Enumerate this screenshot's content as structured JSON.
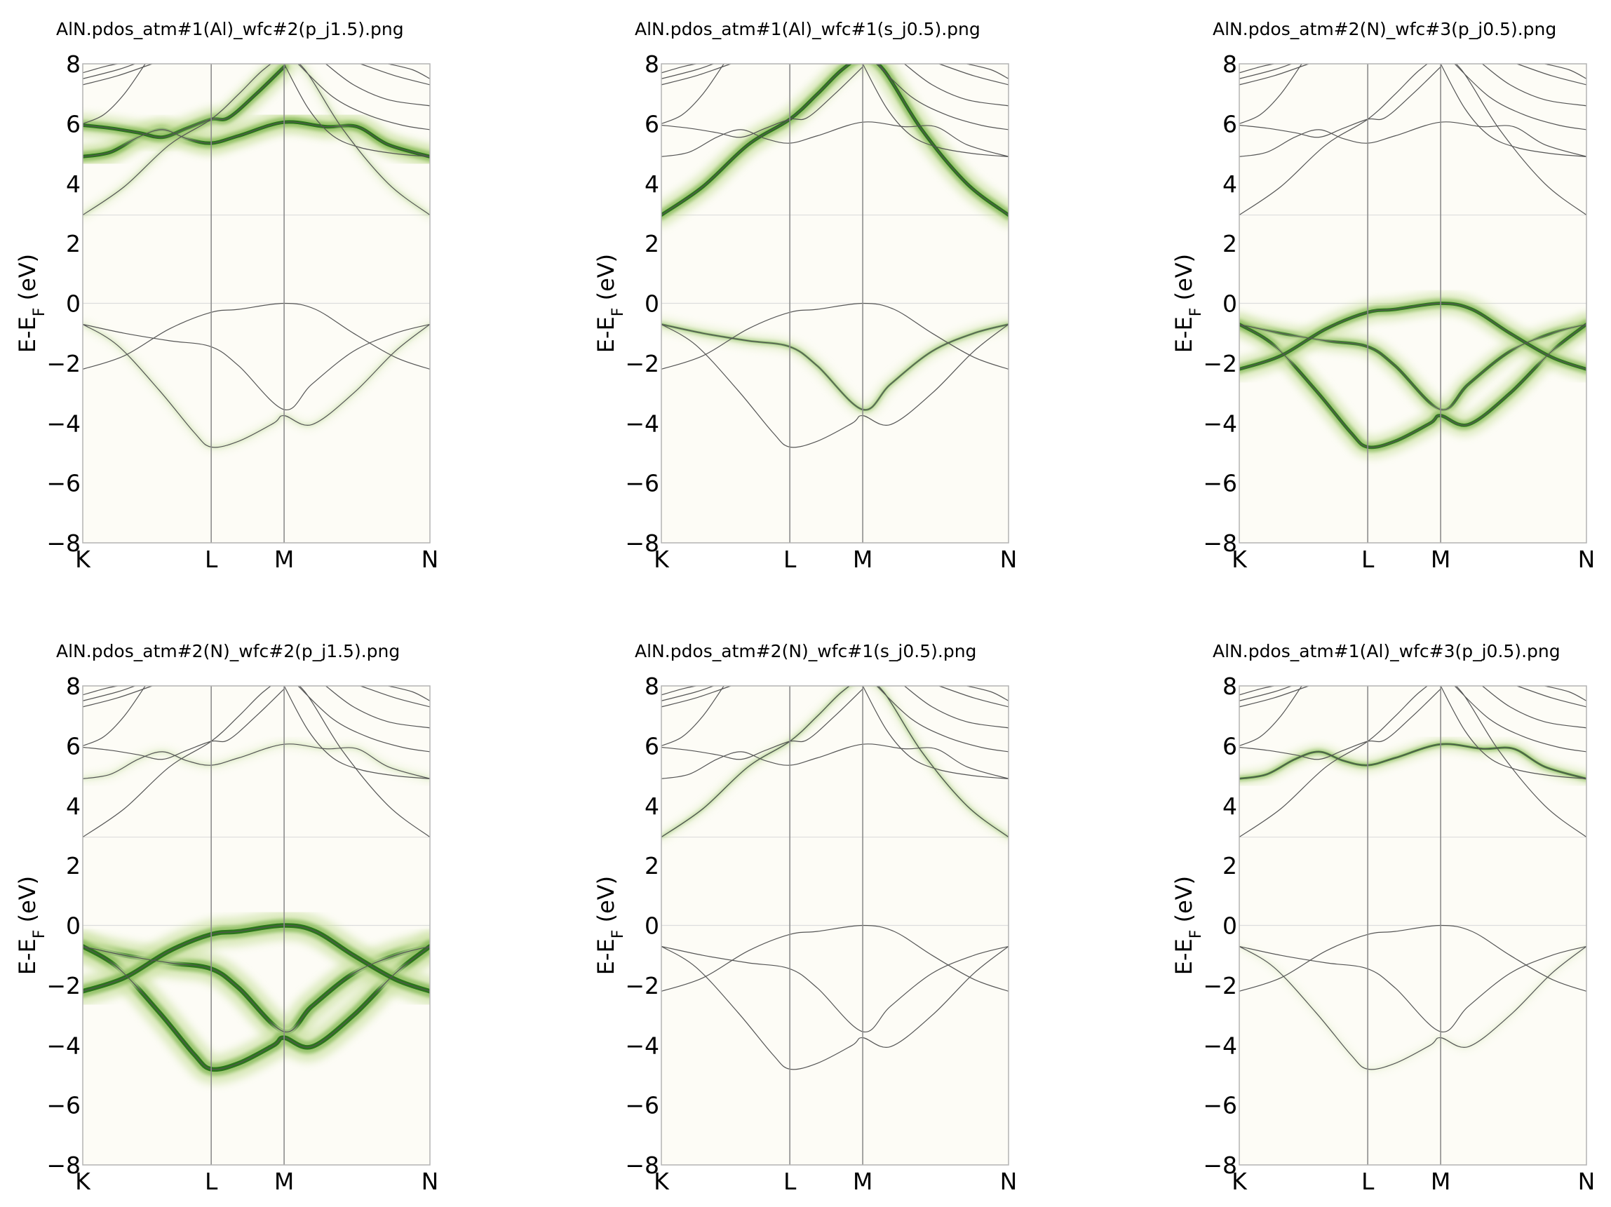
{
  "chart_data": [
    {
      "type": "line",
      "title": "AlN.pdos_atm#1(Al)_wfc#2(p_j1.5).png",
      "ylabel_main": "E-E",
      "ylabel_sub": "F",
      "ylabel_unit": " (eV)",
      "ylim": [
        -8,
        8
      ],
      "yticks": [
        "8",
        "6",
        "4",
        "2",
        "0",
        "−2",
        "−4",
        "−6",
        "−8"
      ],
      "kpoints": [
        "K",
        "L",
        "M",
        "N"
      ],
      "projection_on": [
        "b4:0.75",
        "b4:1.0",
        "b5:1.0",
        "b3:0.35",
        "b1:0.3"
      ],
      "projection_strength": "strong"
    },
    {
      "type": "line",
      "title": "AlN.pdos_atm#1(Al)_wfc#1(s_j0.5).png",
      "ylabel_main": "E-E",
      "ylabel_sub": "F",
      "ylabel_unit": " (eV)",
      "ylim": [
        -8,
        8
      ],
      "yticks": [
        "8",
        "6",
        "4",
        "2",
        "0",
        "−2",
        "−4",
        "−6",
        "−8"
      ],
      "kpoints": [
        "K",
        "L",
        "M",
        "N"
      ],
      "projection_on": [
        "b3:1.0",
        "b0:0.55"
      ],
      "projection_strength": "strong"
    },
    {
      "type": "line",
      "title": "AlN.pdos_atm#2(N)_wfc#3(p_j0.5).png",
      "ylabel_main": "E-E",
      "ylabel_sub": "F",
      "ylabel_unit": " (eV)",
      "ylim": [
        -8,
        8
      ],
      "yticks": [
        "8",
        "6",
        "4",
        "2",
        "0",
        "−2",
        "−4",
        "−6",
        "−8"
      ],
      "kpoints": [
        "K",
        "L",
        "M",
        "N"
      ],
      "projection_on": [
        "b0:0.85",
        "b1:0.95",
        "b2:0.95"
      ],
      "projection_strength": "strong"
    },
    {
      "type": "line",
      "title": "AlN.pdos_atm#2(N)_wfc#2(p_j1.5).png",
      "ylabel_main": "E-E",
      "ylabel_sub": "F",
      "ylabel_unit": " (eV)",
      "ylim": [
        -8,
        8
      ],
      "yticks": [
        "8",
        "6",
        "4",
        "2",
        "0",
        "−2",
        "−4",
        "−6",
        "−8"
      ],
      "kpoints": [
        "K",
        "L",
        "M",
        "N"
      ],
      "projection_on": [
        "b0:1.0",
        "b1:1.0",
        "b2:1.0",
        "b4:0.25"
      ],
      "projection_strength": "very-strong"
    },
    {
      "type": "line",
      "title": "AlN.pdos_atm#2(N)_wfc#1(s_j0.5).png",
      "ylabel_main": "E-E",
      "ylabel_sub": "F",
      "ylabel_unit": " (eV)",
      "ylim": [
        -8,
        8
      ],
      "yticks": [
        "8",
        "6",
        "4",
        "2",
        "0",
        "−2",
        "−4",
        "−6",
        "−8"
      ],
      "kpoints": [
        "K",
        "L",
        "M",
        "N"
      ],
      "projection_on": [
        "b3:0.6"
      ],
      "projection_strength": "weak"
    },
    {
      "type": "line",
      "title": "AlN.pdos_atm#1(Al)_wfc#3(p_j0.5).png",
      "ylabel_main": "E-E",
      "ylabel_sub": "F",
      "ylabel_unit": " (eV)",
      "ylim": [
        -8,
        8
      ],
      "yticks": [
        "8",
        "6",
        "4",
        "2",
        "0",
        "−2",
        "−4",
        "−6",
        "−8"
      ],
      "kpoints": [
        "K",
        "L",
        "M",
        "N"
      ],
      "projection_on": [
        "b4:0.8",
        "b1:0.25"
      ],
      "projection_strength": "medium"
    }
  ],
  "bands": {
    "b0": [
      [
        0,
        -0.7
      ],
      [
        0.12,
        -1.0
      ],
      [
        0.25,
        -1.25
      ],
      [
        0.37,
        -1.45
      ],
      [
        0.45,
        -2.1
      ],
      [
        0.58,
        -3.55
      ],
      [
        0.66,
        -2.7
      ],
      [
        0.78,
        -1.6
      ],
      [
        0.9,
        -1.0
      ],
      [
        1.0,
        -0.7
      ]
    ],
    "b1": [
      [
        0,
        -0.7
      ],
      [
        0.1,
        -1.4
      ],
      [
        0.22,
        -2.9
      ],
      [
        0.32,
        -4.3
      ],
      [
        0.37,
        -4.8
      ],
      [
        0.45,
        -4.6
      ],
      [
        0.55,
        -4.0
      ],
      [
        0.58,
        -3.75
      ],
      [
        0.66,
        -4.05
      ],
      [
        0.78,
        -3.0
      ],
      [
        0.9,
        -1.6
      ],
      [
        1.0,
        -0.7
      ]
    ],
    "b2": [
      [
        0,
        -2.2
      ],
      [
        0.12,
        -1.75
      ],
      [
        0.25,
        -0.85
      ],
      [
        0.37,
        -0.3
      ],
      [
        0.45,
        -0.2
      ],
      [
        0.58,
        0.0
      ],
      [
        0.67,
        -0.2
      ],
      [
        0.78,
        -1.0
      ],
      [
        0.9,
        -1.8
      ],
      [
        1.0,
        -2.2
      ]
    ],
    "b3": [
      [
        0,
        2.95
      ],
      [
        0.12,
        3.9
      ],
      [
        0.25,
        5.3
      ],
      [
        0.37,
        6.15
      ],
      [
        0.45,
        7.0
      ],
      [
        0.52,
        7.8
      ],
      [
        0.58,
        8.2
      ],
      [
        0.64,
        7.8
      ],
      [
        0.75,
        5.8
      ],
      [
        0.88,
        4.0
      ],
      [
        1.0,
        2.95
      ]
    ],
    "b4": [
      [
        0,
        4.9
      ],
      [
        0.08,
        5.05
      ],
      [
        0.16,
        5.55
      ],
      [
        0.23,
        5.8
      ],
      [
        0.3,
        5.5
      ],
      [
        0.37,
        5.35
      ],
      [
        0.45,
        5.6
      ],
      [
        0.58,
        6.05
      ],
      [
        0.7,
        5.9
      ],
      [
        0.79,
        5.9
      ],
      [
        0.88,
        5.3
      ],
      [
        1.0,
        4.9
      ]
    ],
    "b5": [
      [
        0,
        5.95
      ],
      [
        0.08,
        5.85
      ],
      [
        0.16,
        5.7
      ],
      [
        0.23,
        5.55
      ],
      [
        0.3,
        5.85
      ],
      [
        0.37,
        6.15
      ],
      [
        0.42,
        6.2
      ],
      [
        0.5,
        7.0
      ],
      [
        0.58,
        7.9
      ]
    ],
    "b6": [
      [
        0,
        7.3
      ],
      [
        0.1,
        7.6
      ],
      [
        0.2,
        8.0
      ]
    ],
    "b7": [
      [
        0,
        7.5
      ],
      [
        0.1,
        7.8
      ],
      [
        0.15,
        8.0
      ]
    ],
    "b8": [
      [
        0,
        7.7
      ],
      [
        0.06,
        7.9
      ],
      [
        0.1,
        8.0
      ]
    ],
    "b9": [
      [
        0.58,
        8.0
      ],
      [
        0.65,
        6.5
      ],
      [
        0.72,
        5.6
      ],
      [
        0.8,
        5.2
      ],
      [
        0.9,
        5.0
      ],
      [
        1.0,
        4.9
      ]
    ],
    "b10": [
      [
        0.62,
        8.0
      ],
      [
        0.72,
        6.9
      ],
      [
        0.82,
        6.3
      ],
      [
        0.92,
        5.95
      ],
      [
        1.0,
        5.8
      ]
    ],
    "b11": [
      [
        0.7,
        8.0
      ],
      [
        0.78,
        7.3
      ],
      [
        0.88,
        6.8
      ],
      [
        1.0,
        6.6
      ]
    ],
    "b12": [
      [
        0.8,
        8.0
      ],
      [
        0.9,
        7.6
      ],
      [
        1.0,
        7.3
      ]
    ],
    "b13": [
      [
        0.88,
        8.0
      ],
      [
        0.95,
        7.8
      ],
      [
        1.0,
        7.5
      ]
    ],
    "b14": [
      [
        0,
        6.0
      ],
      [
        0.06,
        6.3
      ],
      [
        0.12,
        7.0
      ],
      [
        0.18,
        8.0
      ]
    ]
  },
  "kpoint_fractions": [
    0,
    0.37,
    0.58,
    1.0
  ]
}
